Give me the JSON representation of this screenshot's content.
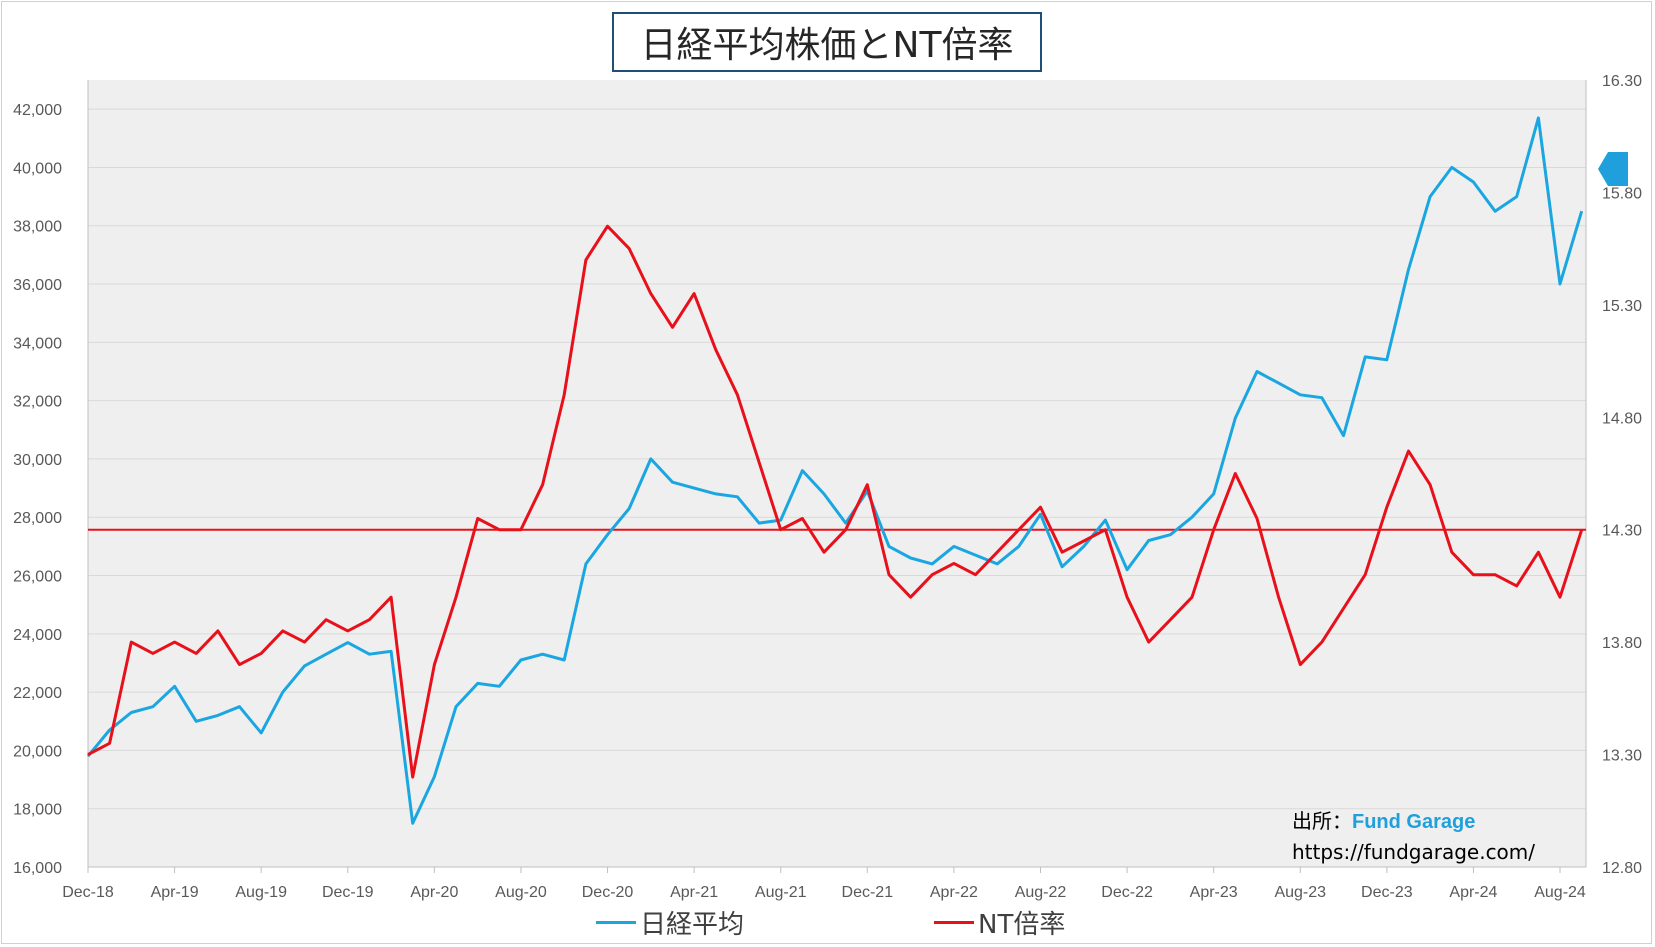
{
  "title": "日経平均株価とNT倍率",
  "source": {
    "prefix": "出所：",
    "name": "Fund Garage",
    "url": "https://fundgarage.com/"
  },
  "colors": {
    "nikkei": "#1aa6e0",
    "nt": "#e8101a",
    "plot_bg": "#efefef",
    "grid": "#d9d9d9",
    "tick_text": "#595959",
    "marker": "#1fa0dc"
  },
  "chart_data": {
    "type": "line",
    "x_tick_labels": [
      "Dec-18",
      "Apr-19",
      "Aug-19",
      "Dec-19",
      "Apr-20",
      "Aug-20",
      "Dec-20",
      "Apr-21",
      "Aug-21",
      "Dec-21",
      "Apr-22",
      "Aug-22",
      "Dec-22",
      "Apr-23",
      "Aug-23",
      "Dec-23",
      "Apr-24",
      "Aug-24"
    ],
    "y_left": {
      "min": 16000,
      "max": 43000,
      "ticks": [
        16000,
        18000,
        20000,
        22000,
        24000,
        26000,
        28000,
        30000,
        32000,
        34000,
        36000,
        38000,
        40000,
        42000
      ],
      "tick_labels": [
        "16,000",
        "18,000",
        "20,000",
        "22,000",
        "24,000",
        "26,000",
        "28,000",
        "30,000",
        "32,000",
        "34,000",
        "36,000",
        "38,000",
        "40,000",
        "42,000"
      ]
    },
    "y_right": {
      "min": 12.8,
      "max": 16.3,
      "ticks": [
        12.8,
        13.3,
        13.8,
        14.3,
        14.8,
        15.3,
        15.8,
        16.3
      ],
      "tick_labels": [
        "12.80",
        "13.30",
        "13.80",
        "14.30",
        "14.80",
        "15.30",
        "15.80",
        "16.30"
      ]
    },
    "reference_line": {
      "axis": "right",
      "value": 14.3
    },
    "legend_position": "bottom",
    "grid": true,
    "series": [
      {
        "name": "日経平均",
        "axis": "left",
        "x": [
          "2018-12",
          "2019-01",
          "2019-02",
          "2019-03",
          "2019-04",
          "2019-05",
          "2019-06",
          "2019-07",
          "2019-08",
          "2019-09",
          "2019-10",
          "2019-11",
          "2019-12",
          "2020-01",
          "2020-02",
          "2020-03",
          "2020-04",
          "2020-05",
          "2020-06",
          "2020-07",
          "2020-08",
          "2020-09",
          "2020-10",
          "2020-11",
          "2020-12",
          "2021-01",
          "2021-02",
          "2021-03",
          "2021-04",
          "2021-05",
          "2021-06",
          "2021-07",
          "2021-08",
          "2021-09",
          "2021-10",
          "2021-11",
          "2021-12",
          "2022-01",
          "2022-02",
          "2022-03",
          "2022-04",
          "2022-05",
          "2022-06",
          "2022-07",
          "2022-08",
          "2022-09",
          "2022-10",
          "2022-11",
          "2022-12",
          "2023-01",
          "2023-02",
          "2023-03",
          "2023-04",
          "2023-05",
          "2023-06",
          "2023-07",
          "2023-08",
          "2023-09",
          "2023-10",
          "2023-11",
          "2023-12",
          "2024-01",
          "2024-02",
          "2024-03",
          "2024-04",
          "2024-05",
          "2024-06",
          "2024-07",
          "2024-08",
          "2024-09"
        ],
        "values": [
          19800,
          20700,
          21300,
          21500,
          22200,
          21000,
          21200,
          21500,
          20600,
          22000,
          22900,
          23300,
          23700,
          23300,
          23400,
          17500,
          19100,
          21500,
          22300,
          22200,
          23100,
          23300,
          23100,
          26400,
          27400,
          28300,
          30000,
          29200,
          29000,
          28800,
          28700,
          27800,
          27900,
          29600,
          28800,
          27800,
          28900,
          27000,
          26600,
          26400,
          27000,
          26700,
          26400,
          27000,
          28100,
          26300,
          27000,
          27900,
          26200,
          27200,
          27400,
          28000,
          28800,
          31400,
          33000,
          32600,
          32200,
          32100,
          30800,
          33500,
          33400,
          36500,
          39000,
          40000,
          39500,
          38500,
          39000,
          41700,
          36000,
          38500
        ]
      },
      {
        "name": "NT倍率",
        "axis": "right",
        "x": [
          "2018-12",
          "2019-01",
          "2019-02",
          "2019-03",
          "2019-04",
          "2019-05",
          "2019-06",
          "2019-07",
          "2019-08",
          "2019-09",
          "2019-10",
          "2019-11",
          "2019-12",
          "2020-01",
          "2020-02",
          "2020-03",
          "2020-04",
          "2020-05",
          "2020-06",
          "2020-07",
          "2020-08",
          "2020-09",
          "2020-10",
          "2020-11",
          "2020-12",
          "2021-01",
          "2021-02",
          "2021-03",
          "2021-04",
          "2021-05",
          "2021-06",
          "2021-07",
          "2021-08",
          "2021-09",
          "2021-10",
          "2021-11",
          "2021-12",
          "2022-01",
          "2022-02",
          "2022-03",
          "2022-04",
          "2022-05",
          "2022-06",
          "2022-07",
          "2022-08",
          "2022-09",
          "2022-10",
          "2022-11",
          "2022-12",
          "2023-01",
          "2023-02",
          "2023-03",
          "2023-04",
          "2023-05",
          "2023-06",
          "2023-07",
          "2023-08",
          "2023-09",
          "2023-10",
          "2023-11",
          "2023-12",
          "2024-01",
          "2024-02",
          "2024-03",
          "2024-04",
          "2024-05",
          "2024-06",
          "2024-07",
          "2024-08",
          "2024-09"
        ],
        "values": [
          13.3,
          13.35,
          13.8,
          13.75,
          13.8,
          13.75,
          13.85,
          13.7,
          13.75,
          13.85,
          13.8,
          13.9,
          13.85,
          13.9,
          14.0,
          13.2,
          13.7,
          14.0,
          14.35,
          14.3,
          14.3,
          14.5,
          14.9,
          15.5,
          15.65,
          15.55,
          15.35,
          15.2,
          15.35,
          15.1,
          14.9,
          14.6,
          14.3,
          14.35,
          14.2,
          14.3,
          14.5,
          14.1,
          14.0,
          14.1,
          14.15,
          14.1,
          14.2,
          14.3,
          14.4,
          14.2,
          14.25,
          14.3,
          14.0,
          13.8,
          13.9,
          14.0,
          14.3,
          14.55,
          14.35,
          14.0,
          13.7,
          13.8,
          13.95,
          14.1,
          14.4,
          14.65,
          14.5,
          14.2,
          14.1,
          14.1,
          14.05,
          14.2,
          14.0,
          14.3
        ]
      }
    ]
  }
}
